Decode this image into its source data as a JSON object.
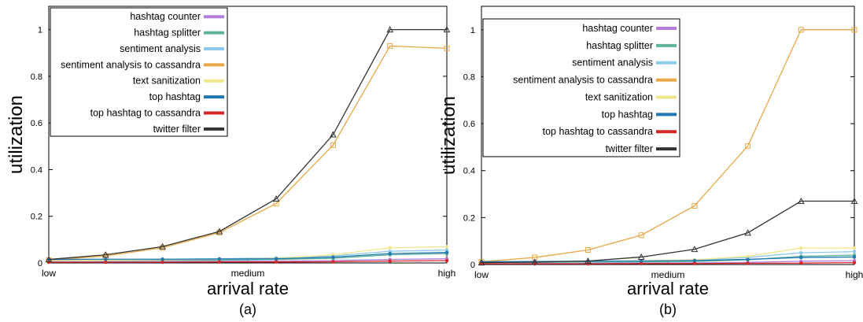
{
  "legend": [
    "hashtag counter",
    "hashtag splitter",
    "sentiment analysis",
    "sentiment analysis to cassandra",
    "text sanitization",
    "top hashtag",
    "top hashtag to cassandra",
    "twitter filter"
  ],
  "colors": {
    "hashtag counter": "#b57edc",
    "hashtag splitter": "#5fb39a",
    "sentiment analysis": "#8ccbea",
    "sentiment analysis to cassandra": "#e8a845",
    "text sanitization": "#f0e68c",
    "top hashtag": "#1f77b4",
    "top hashtag to cassandra": "#d62728",
    "twitter filter": "#333333"
  },
  "chart_data": [
    {
      "type": "line",
      "caption": "(a)",
      "xlabel": "arrival rate",
      "ylabel": "utilization",
      "x_ticks": [
        "low",
        "medium",
        "high"
      ],
      "y_ticks": [
        "0",
        "0.2",
        "0.4",
        "0.6",
        "0.8",
        "1"
      ],
      "ylim": [
        0,
        1.1
      ],
      "x_count": 8,
      "legend_placement": "top-left",
      "grid": false,
      "series": [
        {
          "name": "hashtag counter",
          "values": [
            0.005,
            0.005,
            0.006,
            0.007,
            0.008,
            0.01,
            0.015,
            0.018
          ]
        },
        {
          "name": "hashtag splitter",
          "values": [
            0.01,
            0.01,
            0.011,
            0.012,
            0.015,
            0.02,
            0.035,
            0.04
          ]
        },
        {
          "name": "sentiment analysis",
          "values": [
            0.012,
            0.014,
            0.016,
            0.018,
            0.022,
            0.03,
            0.05,
            0.055
          ]
        },
        {
          "name": "sentiment analysis to cassandra",
          "values": [
            0.012,
            0.03,
            0.065,
            0.13,
            0.255,
            0.505,
            0.93,
            0.92
          ]
        },
        {
          "name": "text sanitization",
          "values": [
            0.01,
            0.012,
            0.014,
            0.016,
            0.02,
            0.035,
            0.065,
            0.07
          ]
        },
        {
          "name": "top hashtag",
          "values": [
            0.015,
            0.016,
            0.016,
            0.017,
            0.018,
            0.025,
            0.04,
            0.045
          ]
        },
        {
          "name": "top hashtag to cassandra",
          "values": [
            0.003,
            0.003,
            0.003,
            0.004,
            0.004,
            0.005,
            0.008,
            0.01
          ]
        },
        {
          "name": "twitter filter",
          "values": [
            0.015,
            0.035,
            0.07,
            0.135,
            0.275,
            0.55,
            1.0,
            1.0
          ]
        }
      ]
    },
    {
      "type": "line",
      "caption": "(b)",
      "xlabel": "arrival rate",
      "ylabel": "utilization",
      "x_ticks": [
        "low",
        "medium",
        "high"
      ],
      "y_ticks": [
        "0",
        "0.2",
        "0.4",
        "0.6",
        "0.8",
        "1"
      ],
      "ylim": [
        0,
        1.1
      ],
      "x_count": 8,
      "legend_placement": "top-left",
      "grid": false,
      "series": [
        {
          "name": "hashtag counter",
          "values": [
            0.004,
            0.004,
            0.005,
            0.006,
            0.007,
            0.009,
            0.014,
            0.016
          ]
        },
        {
          "name": "hashtag splitter",
          "values": [
            0.008,
            0.009,
            0.01,
            0.011,
            0.013,
            0.02,
            0.035,
            0.04
          ]
        },
        {
          "name": "sentiment analysis",
          "values": [
            0.01,
            0.012,
            0.014,
            0.016,
            0.02,
            0.03,
            0.05,
            0.055
          ]
        },
        {
          "name": "sentiment analysis to cassandra",
          "values": [
            0.012,
            0.03,
            0.062,
            0.125,
            0.25,
            0.505,
            1.0,
            1.0
          ]
        },
        {
          "name": "text sanitization",
          "values": [
            0.01,
            0.012,
            0.014,
            0.016,
            0.02,
            0.035,
            0.07,
            0.07
          ]
        },
        {
          "name": "top hashtag",
          "values": [
            0.012,
            0.013,
            0.014,
            0.015,
            0.017,
            0.022,
            0.03,
            0.032
          ]
        },
        {
          "name": "top hashtag to cassandra",
          "values": [
            0.003,
            0.003,
            0.003,
            0.004,
            0.004,
            0.005,
            0.006,
            0.008
          ]
        },
        {
          "name": "twitter filter",
          "values": [
            0.008,
            0.01,
            0.015,
            0.032,
            0.065,
            0.135,
            0.27,
            0.27
          ]
        }
      ]
    }
  ]
}
